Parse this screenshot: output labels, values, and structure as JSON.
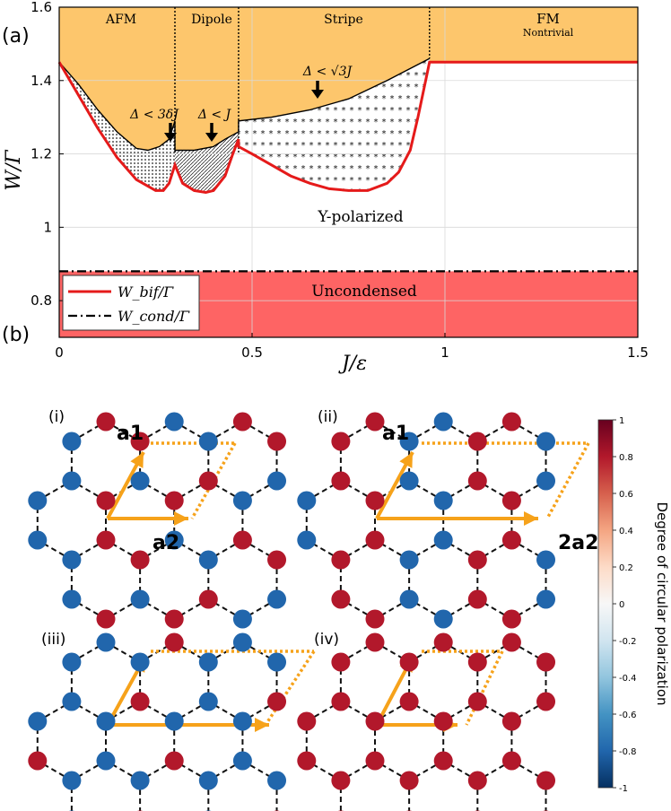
{
  "panel_a": {
    "label": "(a)",
    "y_axis_label": "W/Γ",
    "x_axis_label": "J/ε",
    "x_ticks": [
      "0",
      "0.5",
      "1",
      "1.5"
    ],
    "y_ticks": [
      "0.8",
      "1",
      "1.2",
      "1.4",
      "1.6"
    ],
    "regions": {
      "afm": "AFM",
      "dipole": "Dipole",
      "stripe": "Stripe",
      "fm": "FM",
      "fm_sub": "Nontrivial",
      "ypol": "Y-polarized",
      "uncond": "Uncondensed"
    },
    "annotations": {
      "afm_gap": "Δ < 3δJ",
      "dipole_gap": "Δ < J",
      "stripe_gap": "Δ < √3J"
    },
    "legend": {
      "bif": "W_bif/Γ",
      "cond": "W_cond/Γ"
    },
    "colors": {
      "orange_region": "#fdc66c",
      "uncondensed_region": "#fe6464",
      "bif_line": "#e51a1a",
      "cond_line": "#000000"
    }
  },
  "panel_b": {
    "label": "(b)",
    "subpanels": [
      {
        "label": "(i)",
        "vec1": "a1",
        "vec2": "a2"
      },
      {
        "label": "(ii)",
        "vec1": "a1",
        "vec2": "2a2"
      },
      {
        "label": "(iii)",
        "vec1": "",
        "vec2": ""
      },
      {
        "label": "(iv)",
        "vec1": "",
        "vec2": ""
      }
    ],
    "colorbar": {
      "label": "Degree of circular polarization",
      "ticks": [
        "1",
        "0.8",
        "0.6",
        "0.4",
        "0.2",
        "0",
        "-0.2",
        "-0.4",
        "-0.6",
        "-0.8",
        "-1"
      ],
      "red": "#b2182b",
      "blue": "#2166ac"
    }
  },
  "chart_data": {
    "type": "line",
    "xlabel": "J/ε",
    "ylabel": "W/Γ",
    "xlim": [
      0,
      1.5
    ],
    "ylim": [
      0.7,
      1.6
    ],
    "grid": true,
    "legend_position": "bottom-left",
    "series": [
      {
        "name": "W_bif/Γ",
        "x": [
          0,
          0.05,
          0.1,
          0.15,
          0.2,
          0.25,
          0.27,
          0.285,
          0.3,
          0.32,
          0.35,
          0.38,
          0.4,
          0.43,
          0.45,
          0.465,
          0.465,
          0.5,
          0.55,
          0.6,
          0.65,
          0.7,
          0.75,
          0.8,
          0.85,
          0.88,
          0.91,
          0.93,
          0.95,
          0.96,
          0.96,
          1.5
        ],
        "y": [
          1.45,
          1.36,
          1.27,
          1.19,
          1.13,
          1.1,
          1.1,
          1.12,
          1.17,
          1.12,
          1.1,
          1.095,
          1.1,
          1.14,
          1.2,
          1.24,
          1.22,
          1.2,
          1.17,
          1.14,
          1.12,
          1.105,
          1.1,
          1.1,
          1.12,
          1.15,
          1.21,
          1.3,
          1.4,
          1.45,
          1.45,
          1.45
        ]
      },
      {
        "name": "W_cond/Γ",
        "x": [
          0,
          1.5
        ],
        "y": [
          0.88,
          0.88
        ]
      }
    ]
  }
}
